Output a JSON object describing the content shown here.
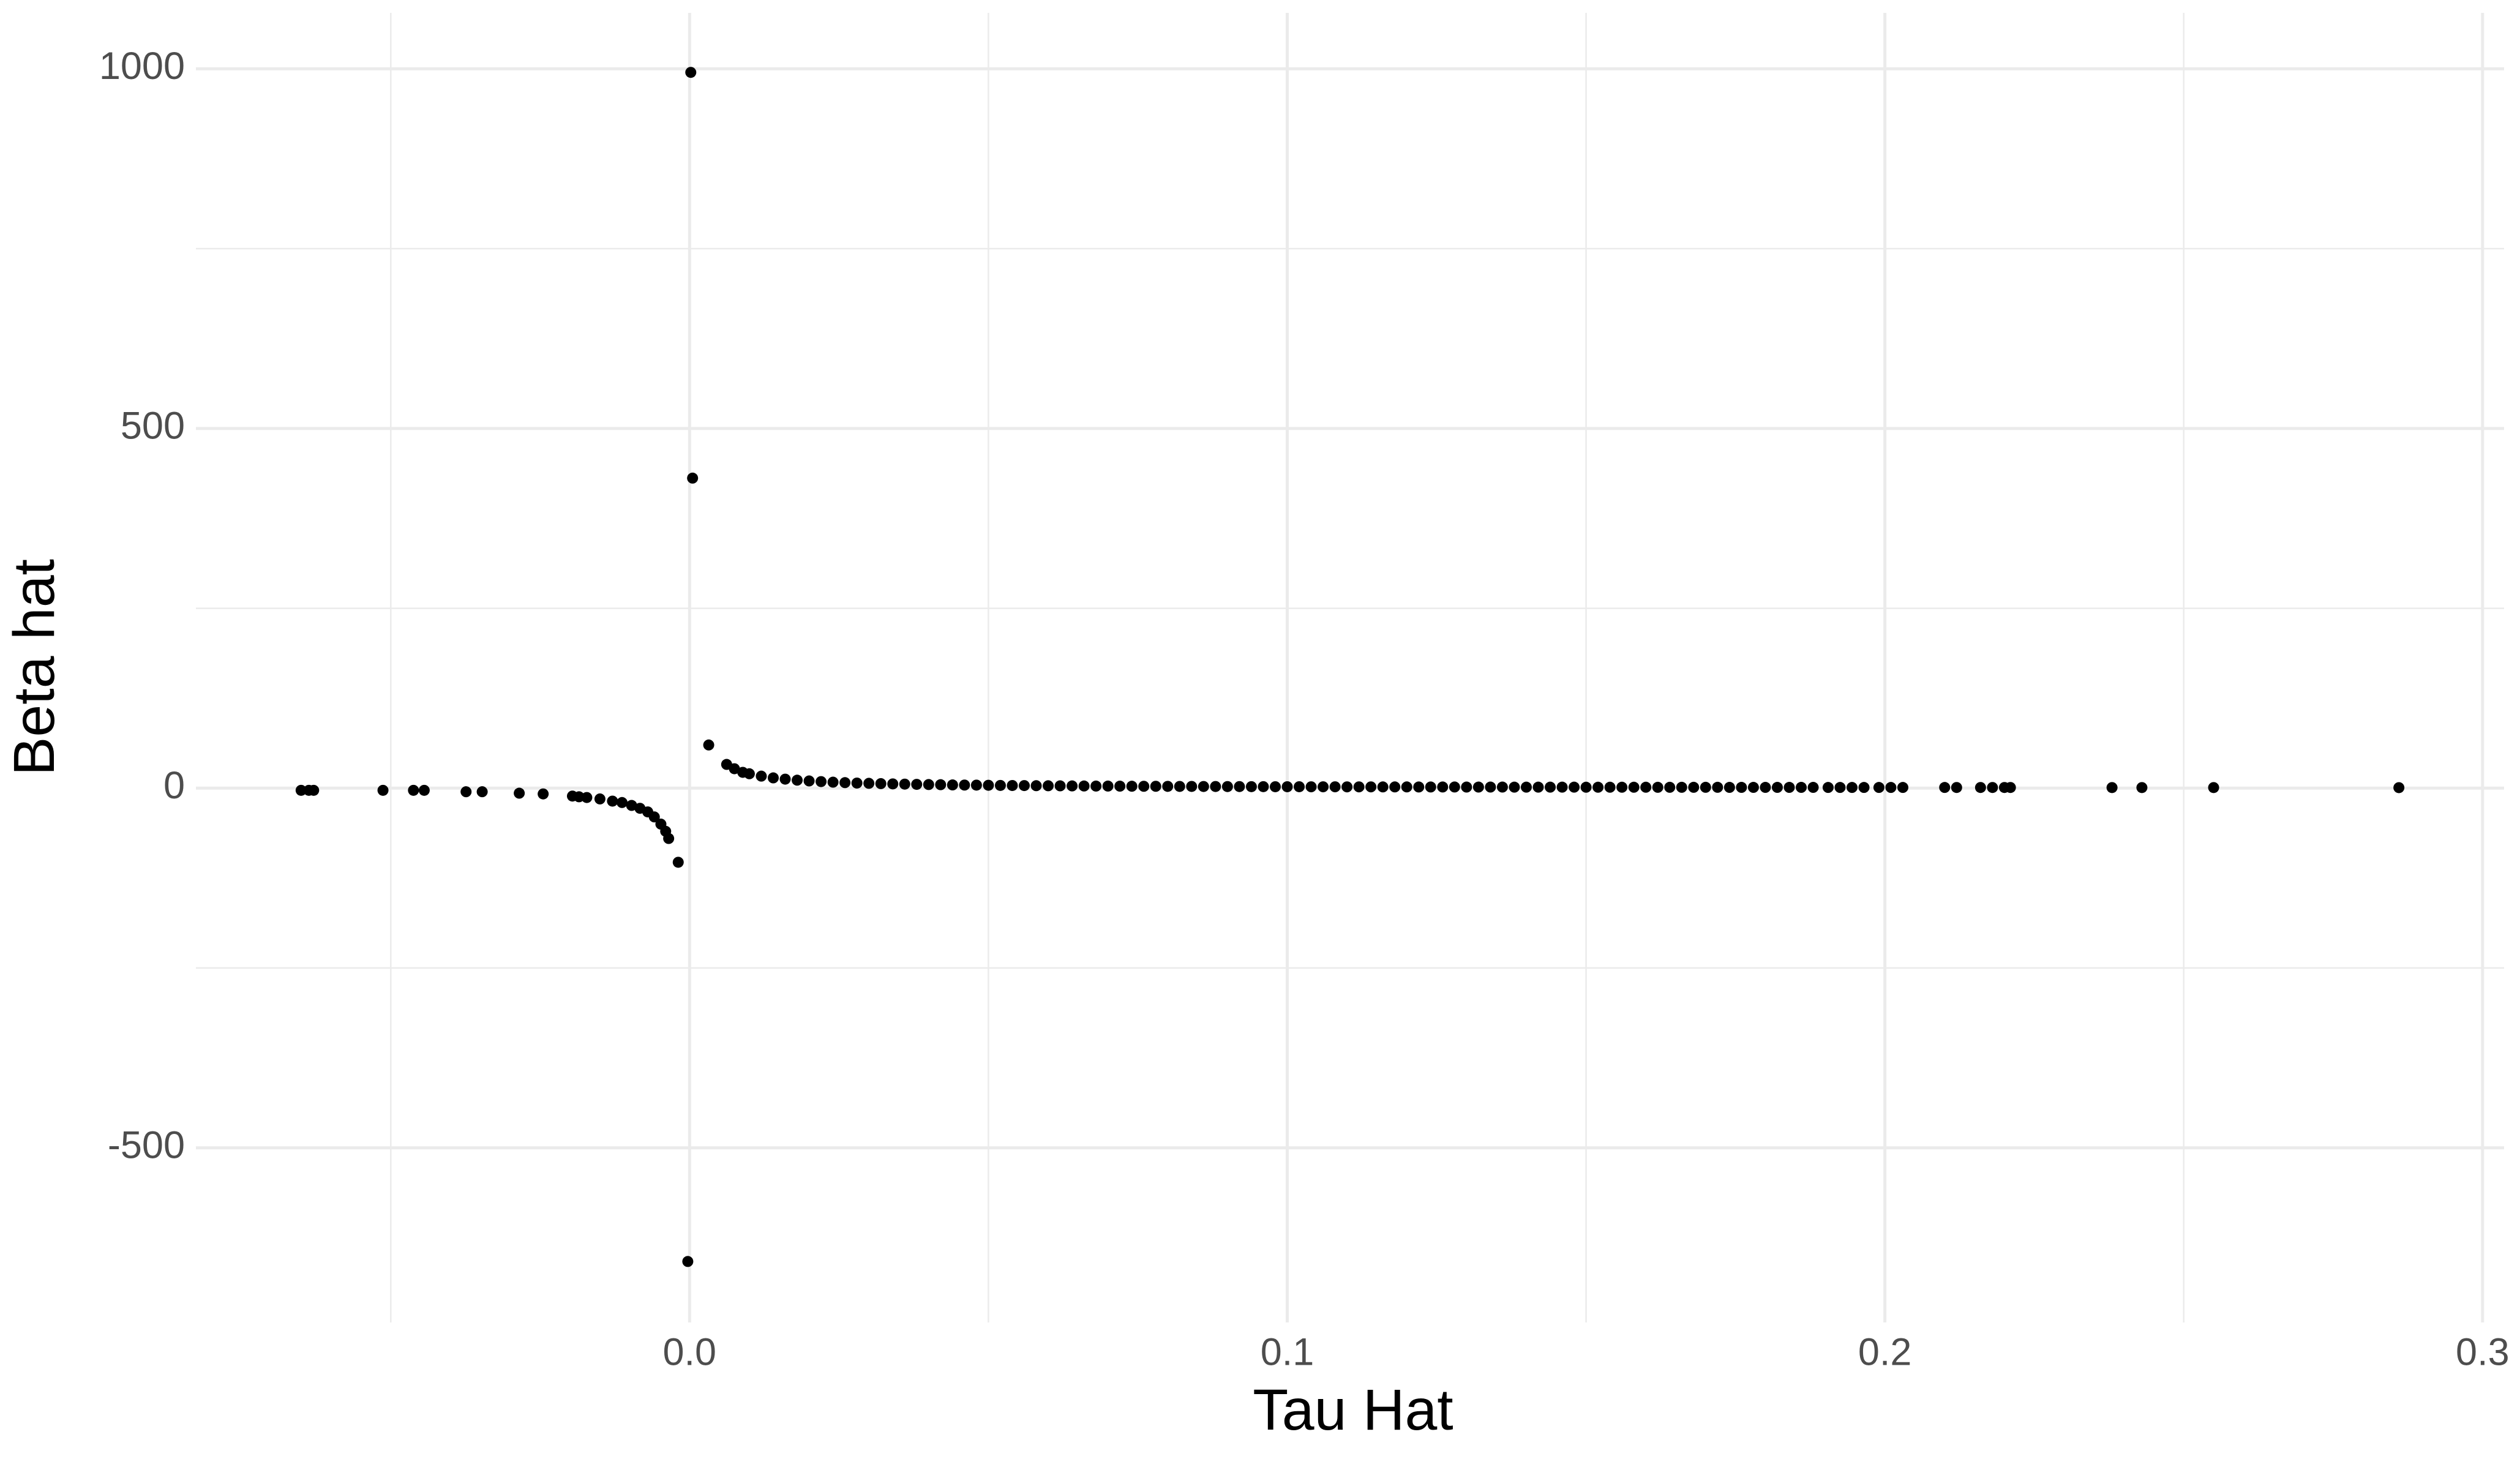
{
  "chart_data": {
    "type": "scatter",
    "x_label": "Tau Hat",
    "y_label": "Beta hat",
    "x": [
      -0.065,
      -0.0637,
      -0.0629,
      -0.0513,
      -0.0462,
      -0.0444,
      -0.0374,
      -0.0347,
      -0.0285,
      -0.0245,
      -0.0196,
      -0.0185,
      -0.0172,
      -0.015,
      -0.0129,
      -0.0113,
      -0.0097,
      -0.0083,
      -0.007,
      -0.0059,
      -0.0048,
      -0.004,
      -0.0035,
      -0.0019,
      -0.0003,
      0.0002,
      0.0005,
      0.0032,
      0.0062,
      0.0075,
      0.0089,
      0.01,
      0.012,
      0.014,
      0.016,
      0.018,
      0.02,
      0.022,
      0.024,
      0.026,
      0.028,
      0.03,
      0.032,
      0.034,
      0.036,
      0.038,
      0.04,
      0.042,
      0.044,
      0.046,
      0.048,
      0.05,
      0.052,
      0.054,
      0.056,
      0.058,
      0.06,
      0.062,
      0.064,
      0.066,
      0.068,
      0.07,
      0.072,
      0.074,
      0.076,
      0.078,
      0.08,
      0.082,
      0.084,
      0.086,
      0.088,
      0.09,
      0.092,
      0.094,
      0.096,
      0.098,
      0.1,
      0.102,
      0.104,
      0.106,
      0.108,
      0.11,
      0.112,
      0.114,
      0.116,
      0.118,
      0.12,
      0.122,
      0.124,
      0.126,
      0.128,
      0.13,
      0.132,
      0.134,
      0.136,
      0.138,
      0.14,
      0.142,
      0.144,
      0.146,
      0.148,
      0.15,
      0.152,
      0.154,
      0.156,
      0.158,
      0.16,
      0.162,
      0.164,
      0.166,
      0.168,
      0.17,
      0.172,
      0.174,
      0.176,
      0.178,
      0.18,
      0.182,
      0.184,
      0.186,
      0.188,
      0.1905,
      0.1925,
      0.1945,
      0.1965,
      0.199,
      0.201,
      0.203,
      0.21,
      0.212,
      0.216,
      0.218,
      0.22,
      0.221,
      0.238,
      0.243,
      0.255,
      0.286
    ],
    "series": [
      {
        "color": "#000000",
        "values": [
          -3,
          -3,
          -3,
          -3,
          -3,
          -3,
          -5,
          -5,
          -7,
          -8,
          -11,
          -12,
          -13,
          -15,
          -18,
          -20,
          -24,
          -28,
          -33,
          -40,
          -50,
          -60,
          -70,
          -103,
          -658,
          995,
          431,
          60,
          33,
          27,
          22,
          20,
          16.7,
          14.3,
          12.5,
          11.1,
          10.0,
          9.1,
          8.3,
          7.7,
          7.1,
          6.7,
          6.3,
          5.9,
          5.6,
          5.3,
          5.0,
          4.8,
          4.5,
          4.3,
          4.2,
          4.0,
          3.8,
          3.7,
          3.6,
          3.4,
          3.3,
          3.2,
          3.1,
          3.0,
          2.9,
          2.9,
          2.8,
          2.7,
          2.6,
          2.6,
          2.5,
          2.4,
          2.4,
          2.3,
          2.3,
          2.2,
          2.2,
          2.1,
          2.1,
          2.0,
          2.0,
          2.0,
          1.9,
          1.9,
          1.9,
          1.8,
          1.8,
          1.8,
          1.7,
          1.7,
          1.7,
          1.6,
          1.6,
          1.6,
          1.6,
          1.5,
          1.5,
          1.5,
          1.5,
          1.4,
          1.4,
          1.4,
          1.4,
          1.4,
          1.4,
          1.3,
          1.3,
          1.3,
          1.3,
          1.3,
          1.3,
          1.2,
          1.2,
          1.2,
          1.2,
          1.2,
          1.2,
          1.1,
          1.1,
          1.1,
          1.1,
          1.1,
          1.1,
          1.1,
          1.1,
          1.0,
          1.0,
          1.0,
          1.0,
          1.0,
          1.0,
          1.0,
          1.0,
          0.9,
          0.9,
          0.9,
          0.9,
          0.9,
          0.8,
          0.8,
          0.8,
          0.7
        ]
      }
    ],
    "xlim": [
      -0.0826,
      0.3036
    ],
    "ylim": [
      -742.75,
      1077.75
    ],
    "xticks": [
      {
        "value": 0,
        "label": "0.0"
      },
      0.1,
      0.2,
      {
        "value": 0.3,
        "label": "0.3"
      }
    ],
    "yticks": [
      -500,
      0,
      500,
      1000
    ],
    "x_minor_grid": [
      -0.05,
      0.05,
      0.15,
      0.25
    ],
    "y_minor_grid": [
      -250,
      250,
      750
    ],
    "grid": true
  }
}
